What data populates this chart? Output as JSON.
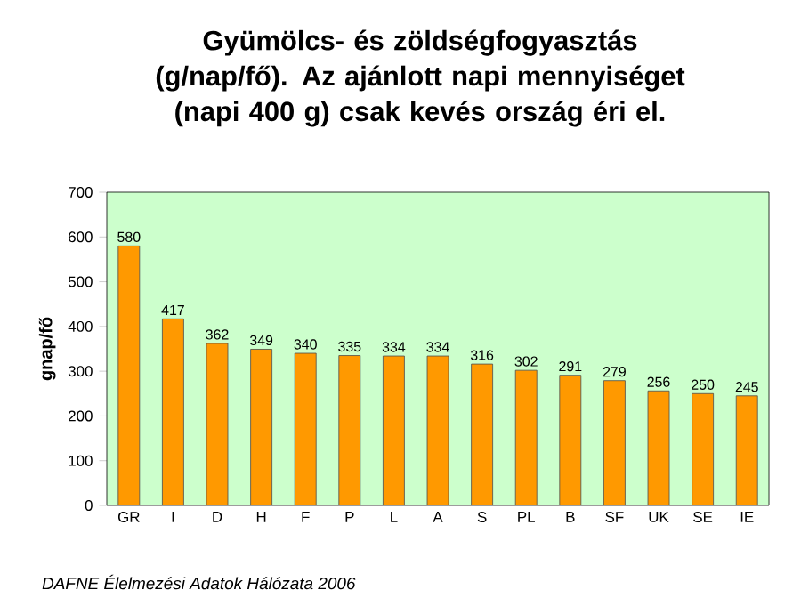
{
  "chart_data": {
    "type": "bar",
    "title": "**Gyümölcs- és zöldségfogyasztás (g/nap/fő). Az ajánlott napi mennyiséget (napi 400 g) csak kevés ország éri el.**",
    "ylabel": "gnap/fő",
    "categories": [
      "GR",
      "I",
      "D",
      "H",
      "F",
      "P",
      "L",
      "A",
      "S",
      "PL",
      "B",
      "SF",
      "UK",
      "SE",
      "IE"
    ],
    "values": [
      580,
      417,
      362,
      349,
      340,
      335,
      334,
      334,
      316,
      302,
      291,
      279,
      256,
      250,
      245
    ],
    "color": "#ff9900",
    "ylim": [
      0,
      700
    ],
    "yticks": [
      0,
      100,
      200,
      300,
      400,
      500,
      600,
      700
    ],
    "data_labels": true,
    "annotations": [
      "DAFNE Élelmezési Adatok Hálózata 2006"
    ]
  }
}
